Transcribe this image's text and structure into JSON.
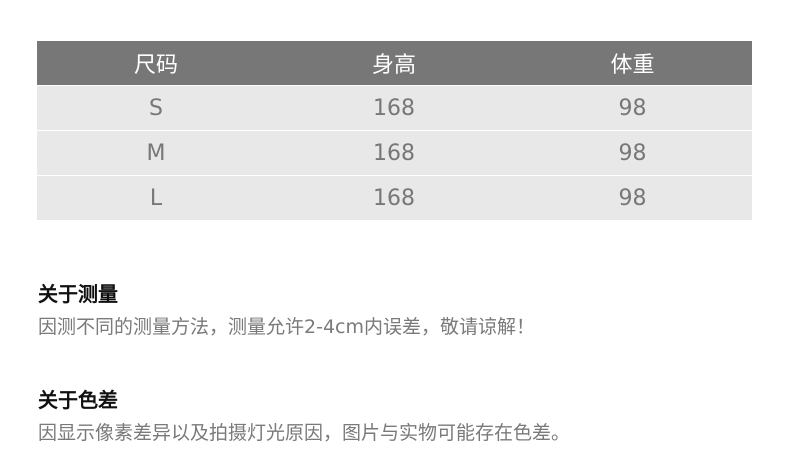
{
  "table": {
    "headers": [
      "尺码",
      "身高",
      "体重"
    ],
    "rows": [
      [
        "S",
        "168",
        "98"
      ],
      [
        "M",
        "168",
        "98"
      ],
      [
        "L",
        "168",
        "98"
      ]
    ]
  },
  "notes": [
    {
      "title": "关于测量",
      "text": "因测不同的测量方法，测量允许2-4cm内误差，敬请谅解！"
    },
    {
      "title": "关于色差",
      "text": "因显示像素差异以及拍摄灯光原因，图片与实物可能存在色差。"
    }
  ]
}
